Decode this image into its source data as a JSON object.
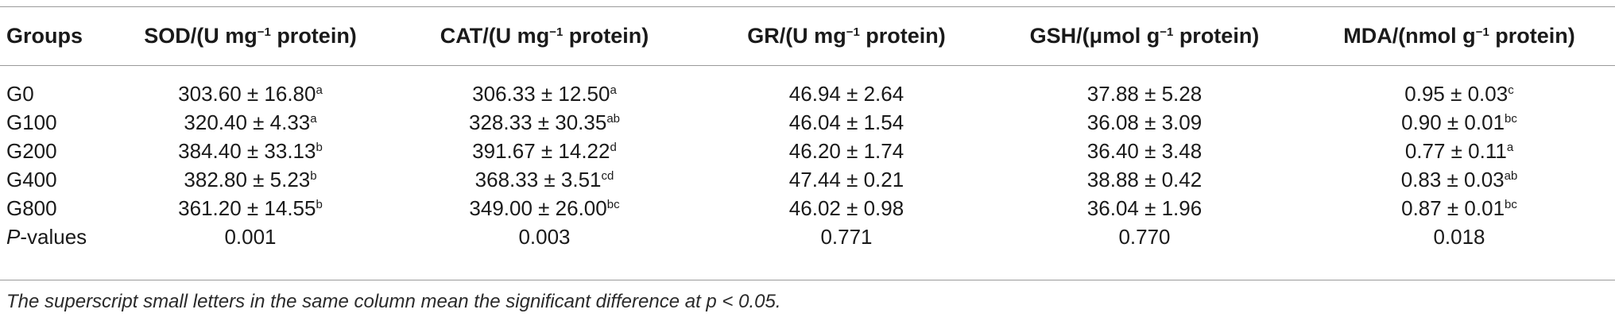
{
  "table": {
    "headers": [
      {
        "text": "Groups",
        "sup": "",
        "rest": ""
      },
      {
        "text": "SOD/(U mg",
        "sup": "−1",
        "rest": " protein)"
      },
      {
        "text": "CAT/(U mg",
        "sup": "−1",
        "rest": " protein)"
      },
      {
        "text": "GR/(U mg",
        "sup": "−1",
        "rest": " protein)"
      },
      {
        "text": "GSH/(μmol g",
        "sup": "−1",
        "rest": " protein)"
      },
      {
        "text": "MDA/(nmol g",
        "sup": "−1",
        "rest": " protein)"
      }
    ],
    "rows": [
      {
        "group": "G0",
        "cells": [
          {
            "v": "303.60 ± 16.80",
            "s": "a"
          },
          {
            "v": "306.33 ± 12.50",
            "s": "a"
          },
          {
            "v": "46.94 ± 2.64",
            "s": ""
          },
          {
            "v": "37.88 ± 5.28",
            "s": ""
          },
          {
            "v": "0.95 ± 0.03",
            "s": "c"
          }
        ]
      },
      {
        "group": "G100",
        "cells": [
          {
            "v": "320.40 ± 4.33",
            "s": "a"
          },
          {
            "v": "328.33 ± 30.35",
            "s": "ab"
          },
          {
            "v": "46.04 ± 1.54",
            "s": ""
          },
          {
            "v": "36.08 ± 3.09",
            "s": ""
          },
          {
            "v": "0.90 ± 0.01",
            "s": "bc"
          }
        ]
      },
      {
        "group": "G200",
        "cells": [
          {
            "v": "384.40 ± 33.13",
            "s": "b"
          },
          {
            "v": "391.67 ± 14.22",
            "s": "d"
          },
          {
            "v": "46.20 ± 1.74",
            "s": ""
          },
          {
            "v": "36.40 ± 3.48",
            "s": ""
          },
          {
            "v": "0.77 ± 0.11",
            "s": "a"
          }
        ]
      },
      {
        "group": "G400",
        "cells": [
          {
            "v": "382.80 ± 5.23",
            "s": "b"
          },
          {
            "v": "368.33 ± 3.51",
            "s": "cd"
          },
          {
            "v": "47.44 ± 0.21",
            "s": ""
          },
          {
            "v": "38.88 ± 0.42",
            "s": ""
          },
          {
            "v": "0.83 ± 0.03",
            "s": "ab"
          }
        ]
      },
      {
        "group": "G800",
        "cells": [
          {
            "v": "361.20 ± 14.55",
            "s": "b"
          },
          {
            "v": "349.00 ± 26.00",
            "s": "bc"
          },
          {
            "v": "46.02 ± 0.98",
            "s": ""
          },
          {
            "v": "36.04 ± 1.96",
            "s": ""
          },
          {
            "v": "0.87 ± 0.01",
            "s": "bc"
          }
        ]
      }
    ],
    "pvalues": {
      "label_italic": "P",
      "label_rest": "-values",
      "values": [
        "0.001",
        "0.003",
        "0.771",
        "0.770",
        "0.018"
      ]
    }
  },
  "footnote": "The superscript small letters in the same column mean the significant difference at p < 0.05."
}
